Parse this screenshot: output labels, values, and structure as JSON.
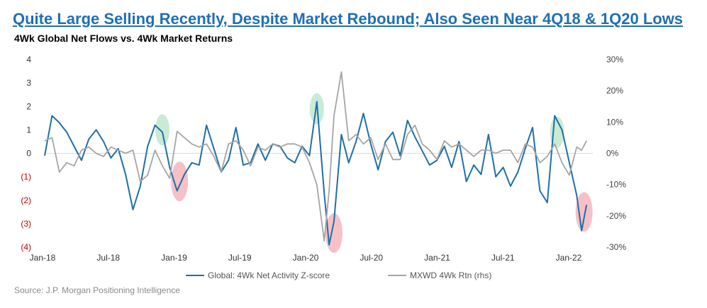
{
  "header": {
    "title": "Quite Large Selling Recently, Despite Market Rebound; Also Seen Near 4Q18 & 1Q20 Lows",
    "subtitle": "4Wk Global Net Flows vs. 4Wk Market Returns",
    "source": "Source: J.P. Morgan Positioning Intelligence"
  },
  "chart_data": {
    "type": "line",
    "x_tick_labels": [
      "Jan-18",
      "Jul-18",
      "Jan-19",
      "Jul-19",
      "Jan-20",
      "Jul-20",
      "Jan-21",
      "Jul-21",
      "Jan-22"
    ],
    "y_left_tick_labels": [
      "4",
      "3",
      "2",
      "1",
      "0",
      "(1)",
      "(2)",
      "(3)",
      "(4)"
    ],
    "y_left_ticks": [
      4,
      3,
      2,
      1,
      0,
      -1,
      -2,
      -3,
      -4
    ],
    "y_left_range": [
      -4,
      4
    ],
    "y_right_tick_labels": [
      "30%",
      "20%",
      "10%",
      "0%",
      "-10%",
      "-20%",
      "-30%"
    ],
    "y_right_ticks": [
      30,
      20,
      10,
      0,
      -10,
      -20,
      -30
    ],
    "y_right_range": [
      -30,
      30
    ],
    "x_range": [
      "2018-01-01",
      "2022-04-15"
    ],
    "series": [
      {
        "name": "Global: 4Wk Net Activity Z-score",
        "axis": "left",
        "color": "#1f6fa8",
        "x": [
          "2018-01-01",
          "2018-01-22",
          "2018-02-12",
          "2018-03-05",
          "2018-03-26",
          "2018-04-16",
          "2018-05-07",
          "2018-05-28",
          "2018-06-18",
          "2018-07-09",
          "2018-07-30",
          "2018-08-20",
          "2018-09-10",
          "2018-10-01",
          "2018-10-22",
          "2018-11-12",
          "2018-12-03",
          "2018-12-24",
          "2019-01-14",
          "2019-02-04",
          "2019-02-25",
          "2019-03-18",
          "2019-04-08",
          "2019-04-29",
          "2019-05-20",
          "2019-06-10",
          "2019-07-01",
          "2019-07-22",
          "2019-08-12",
          "2019-09-02",
          "2019-09-23",
          "2019-10-14",
          "2019-11-04",
          "2019-11-25",
          "2019-12-16",
          "2020-01-06",
          "2020-01-27",
          "2020-02-17",
          "2020-03-09",
          "2020-03-23",
          "2020-04-06",
          "2020-04-27",
          "2020-05-18",
          "2020-06-08",
          "2020-06-29",
          "2020-07-20",
          "2020-08-10",
          "2020-08-31",
          "2020-09-21",
          "2020-10-12",
          "2020-11-02",
          "2020-11-23",
          "2020-12-14",
          "2021-01-04",
          "2021-01-25",
          "2021-02-15",
          "2021-03-08",
          "2021-03-29",
          "2021-04-19",
          "2021-05-10",
          "2021-05-31",
          "2021-06-21",
          "2021-07-12",
          "2021-08-02",
          "2021-08-23",
          "2021-09-13",
          "2021-10-04",
          "2021-10-25",
          "2021-11-15",
          "2021-12-06",
          "2021-12-27",
          "2022-01-17",
          "2022-02-07",
          "2022-02-28",
          "2022-03-14",
          "2022-03-28"
        ],
        "values": [
          -0.1,
          1.6,
          1.3,
          0.9,
          0.3,
          -0.3,
          0.6,
          1.0,
          0.5,
          -0.2,
          0.2,
          -0.9,
          -2.4,
          -1.4,
          0.3,
          1.2,
          0.9,
          -0.6,
          -1.6,
          -0.9,
          -0.4,
          -0.5,
          1.2,
          0.2,
          -0.8,
          -0.3,
          1.1,
          -0.5,
          -0.4,
          0.4,
          -0.3,
          0.4,
          0.3,
          -0.2,
          -0.4,
          0.3,
          -0.1,
          2.2,
          -1.7,
          -3.9,
          -2.9,
          0.8,
          -0.4,
          0.5,
          1.7,
          0.4,
          -0.7,
          0.5,
          0.9,
          -0.1,
          1.4,
          0.7,
          0.1,
          -0.5,
          -0.3,
          0.3,
          -0.6,
          0.5,
          -1.2,
          -0.5,
          -0.9,
          0.8,
          -1.0,
          -0.6,
          -1.4,
          -0.8,
          0.2,
          1.1,
          -1.6,
          -2.1,
          1.6,
          1.0,
          -0.4,
          -1.8,
          -3.3,
          -2.2
        ]
      },
      {
        "name": "MXWD 4Wk Rtn (rhs)",
        "axis": "right",
        "color": "#a5a5a5",
        "x": [
          "2018-01-01",
          "2018-01-22",
          "2018-02-12",
          "2018-03-05",
          "2018-03-26",
          "2018-04-16",
          "2018-05-07",
          "2018-05-28",
          "2018-06-18",
          "2018-07-09",
          "2018-07-30",
          "2018-08-20",
          "2018-09-10",
          "2018-10-01",
          "2018-10-22",
          "2018-11-12",
          "2018-12-03",
          "2018-12-24",
          "2019-01-14",
          "2019-02-04",
          "2019-02-25",
          "2019-03-18",
          "2019-04-08",
          "2019-04-29",
          "2019-05-20",
          "2019-06-10",
          "2019-07-01",
          "2019-07-22",
          "2019-08-12",
          "2019-09-02",
          "2019-09-23",
          "2019-10-14",
          "2019-11-04",
          "2019-11-25",
          "2019-12-16",
          "2020-01-06",
          "2020-01-27",
          "2020-02-17",
          "2020-03-09",
          "2020-03-23",
          "2020-04-06",
          "2020-04-27",
          "2020-05-18",
          "2020-06-08",
          "2020-06-29",
          "2020-07-20",
          "2020-08-10",
          "2020-08-31",
          "2020-09-21",
          "2020-10-12",
          "2020-11-02",
          "2020-11-23",
          "2020-12-14",
          "2021-01-04",
          "2021-01-25",
          "2021-02-15",
          "2021-03-08",
          "2021-03-29",
          "2021-04-19",
          "2021-05-10",
          "2021-05-31",
          "2021-06-21",
          "2021-07-12",
          "2021-08-02",
          "2021-08-23",
          "2021-09-13",
          "2021-10-04",
          "2021-10-25",
          "2021-11-15",
          "2021-12-06",
          "2021-12-27",
          "2022-01-17",
          "2022-02-07",
          "2022-02-28",
          "2022-03-14",
          "2022-03-28"
        ],
        "values": [
          4,
          5,
          -6,
          -3,
          -4,
          1,
          2,
          0,
          -1,
          2,
          1,
          0,
          1,
          -9,
          -7,
          1,
          -4,
          -8,
          7,
          5,
          3,
          2,
          3,
          -1,
          -6,
          3,
          4,
          1,
          -4,
          2,
          1,
          3,
          2,
          3,
          3,
          2,
          -3,
          -10,
          -28,
          -12,
          12,
          26,
          4,
          6,
          3,
          5,
          -2,
          3,
          -2,
          -2,
          6,
          9,
          3,
          1,
          -2,
          4,
          2,
          3,
          1,
          -1,
          1,
          1,
          0,
          1,
          1,
          -3,
          3,
          2,
          -3,
          -1,
          3,
          -3,
          -7,
          2,
          1,
          4
        ]
      }
    ],
    "annotations": [
      {
        "kind": "green-highlight",
        "date": "2018-12-03",
        "value": 1.0
      },
      {
        "kind": "red-highlight",
        "date": "2019-01-21",
        "value": -1.2
      },
      {
        "kind": "green-highlight",
        "date": "2020-02-17",
        "value": 1.9
      },
      {
        "kind": "red-highlight",
        "date": "2020-04-06",
        "value": -3.4
      },
      {
        "kind": "green-highlight",
        "date": "2022-01-03",
        "value": 0.9
      },
      {
        "kind": "red-highlight",
        "date": "2022-03-21",
        "value": -2.5
      }
    ],
    "colors": {
      "left_negative_label": "#c00000",
      "green_highlight": "#bfe8cf",
      "red_highlight": "#f4b6bc",
      "zero_line": "#d9d9d9"
    },
    "legend_position": "bottom-center",
    "grid": false
  }
}
